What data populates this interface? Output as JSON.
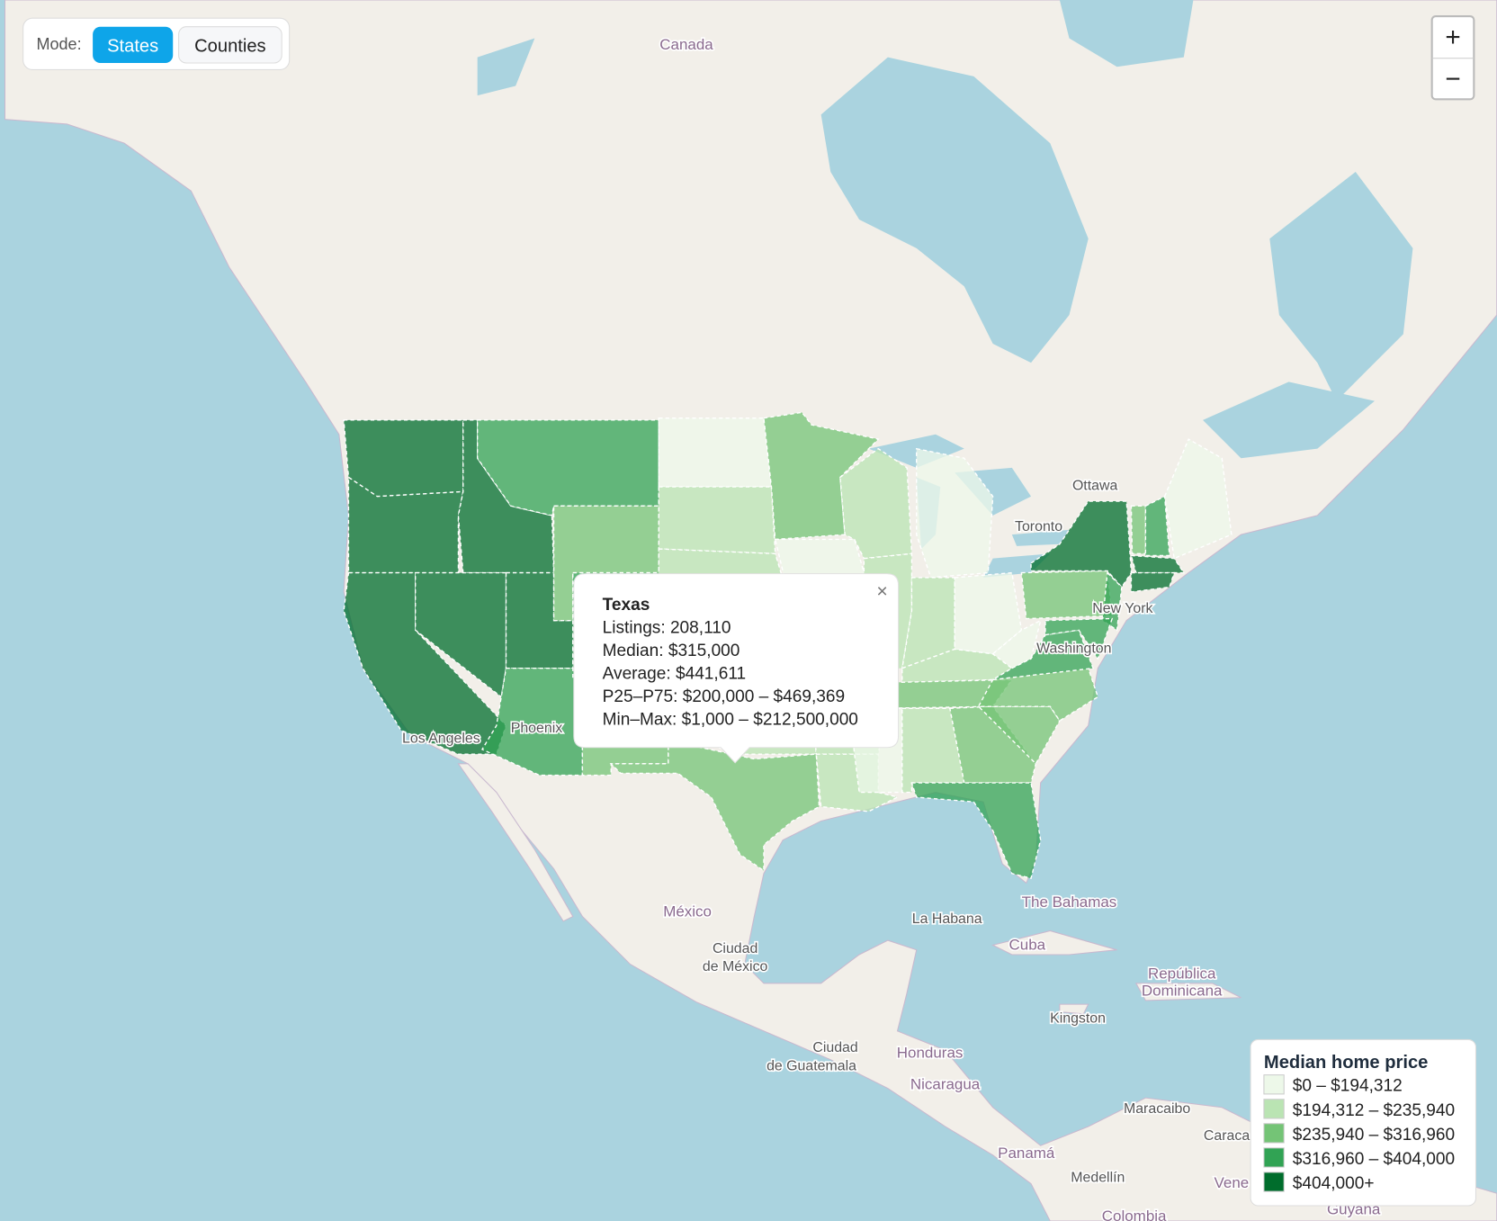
{
  "controls": {
    "mode_label": "Mode:",
    "buttons": [
      "States",
      "Counties"
    ],
    "zoom": [
      "+",
      "−"
    ]
  },
  "popup": {
    "title": "Texas",
    "close": "×",
    "lines": [
      "Listings: 208,110",
      "Median: $315,000",
      "Average: $441,611",
      "P25–P75: $200,000 – $469,369",
      "Min–Max: $1,000 – $212,500,000"
    ]
  },
  "legend": {
    "title": "Median home price",
    "items": [
      {
        "label": "$0 – $194,312",
        "color": "#edf8e9"
      },
      {
        "label": "$194,312 – $235,940",
        "color": "#bae4b3"
      },
      {
        "label": "$235,940 – $316,960",
        "color": "#74c476"
      },
      {
        "label": "$316,960 – $404,000",
        "color": "#31a354"
      },
      {
        "label": "$404,000+",
        "color": "#006d2c"
      }
    ]
  },
  "map_labels": [
    "Canada",
    "Ottawa",
    "Toronto",
    "New York",
    "Washington",
    "Phoenix",
    "Los Angeles",
    "México",
    "Ciudad",
    "de México",
    "La Habana",
    "The Bahamas",
    "Cuba",
    "República",
    "Dominicana",
    "Kingston",
    "Ciudad",
    "de Guatemala",
    "Honduras",
    "Nicaragua",
    "Panamá",
    "Maracaibo",
    "Caraca",
    "Medellín",
    "Vene",
    "Colombia",
    "Guyana"
  ]
}
